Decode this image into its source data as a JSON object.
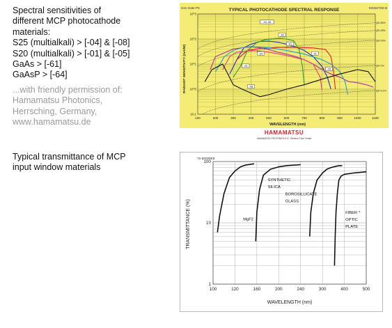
{
  "top_text": {
    "lines": [
      "Spectral sensitivities of",
      "different MCP photocathode",
      "materials:",
      "S25 (multialkali) > [-04] & [-08]",
      "S20 (multialkali) > [-01] & [-05]",
      "GaAs > [-61]",
      "GaAsP > [-64]"
    ],
    "credit": [
      "...with friendly permission of:",
      "Hamamatsu Photonics,",
      "Herrsching, Germany,",
      "www.hamamatsu.de"
    ]
  },
  "bottom_text": {
    "lines": [
      "Typical transmittance of MCP",
      "input window materials"
    ]
  },
  "logo": {
    "text": "HAMAMATSU",
    "sub": "HAMAMATSU PHOTONICS K.K., Electron Tube Center"
  },
  "colors": {
    "chart_bg": "#f4ec74",
    "grid": "#8a8f30",
    "logo_red": "#d81f26"
  },
  "chart_data": [
    {
      "type": "line",
      "title": "TYPICAL PHOTOCATHODE SPECTRAL RESPONSE",
      "corner_left": "Gen Gate PS",
      "corner_right": "E93327SE-B",
      "xlabel": "WAVELENGTH (nm)",
      "ylabel": "RADIANT SENSITIVITY (mA/W)",
      "xlim": [
        100,
        1100
      ],
      "ylim": [
        0.1,
        1000
      ],
      "y_scale": "log",
      "x_ticks": [
        100,
        200,
        300,
        400,
        500,
        600,
        700,
        800,
        900,
        1000,
        1100
      ],
      "y_ticks": [
        {
          "v": 0.1,
          "label": "10-1"
        },
        {
          "v": 1,
          "label": "10^0"
        },
        {
          "v": 10,
          "label": "10^1"
        },
        {
          "v": 100,
          "label": "10^2"
        },
        {
          "v": 1000,
          "label": "10^3"
        }
      ],
      "qe_lines": [
        {
          "label": "QE=50%",
          "q": 0.5
        },
        {
          "label": "QE=25%",
          "q": 0.25
        },
        {
          "label": "QE=10%",
          "q": 0.1
        },
        {
          "label": "QE=1%",
          "q": 0.01
        },
        {
          "label": "QE=0.1%",
          "q": 0.001
        }
      ],
      "series": [
        {
          "name": "-04 -08",
          "color": "#1a2fd6",
          "points": [
            [
              280,
              4
            ],
            [
              320,
              15
            ],
            [
              360,
              45
            ],
            [
              400,
              62
            ],
            [
              450,
              80
            ],
            [
              500,
              82
            ],
            [
              550,
              75
            ],
            [
              600,
              62
            ],
            [
              650,
              48
            ],
            [
              700,
              35
            ],
            [
              750,
              20
            ],
            [
              800,
              8
            ],
            [
              830,
              3
            ],
            [
              850,
              1
            ]
          ]
        },
        {
          "name": "-61",
          "color": "#e02020",
          "points": [
            [
              320,
              15
            ],
            [
              380,
              35
            ],
            [
              450,
              42
            ],
            [
              550,
              46
            ],
            [
              650,
              46
            ],
            [
              750,
              44
            ],
            [
              820,
              38
            ],
            [
              850,
              20
            ],
            [
              865,
              5
            ],
            [
              875,
              1
            ]
          ]
        },
        {
          "name": "-64",
          "color": "#2aa02a",
          "points": [
            [
              300,
              3
            ],
            [
              340,
              8
            ],
            [
              380,
              35
            ],
            [
              430,
              70
            ],
            [
              480,
              95
            ],
            [
              520,
              100
            ],
            [
              560,
              105
            ],
            [
              600,
              100
            ],
            [
              640,
              85
            ],
            [
              670,
              40
            ],
            [
              690,
              8
            ],
            [
              700,
              1.5
            ]
          ]
        },
        {
          "name": "-01",
          "color": "#b030a8",
          "points": [
            [
              170,
              6
            ],
            [
              200,
              20
            ],
            [
              250,
              28
            ],
            [
              300,
              40
            ],
            [
              350,
              45
            ],
            [
              400,
              48
            ],
            [
              450,
              45
            ],
            [
              500,
              38
            ],
            [
              550,
              30
            ],
            [
              600,
              25
            ],
            [
              650,
              20
            ],
            [
              700,
              15
            ],
            [
              750,
              10
            ],
            [
              800,
              6
            ],
            [
              850,
              4
            ],
            [
              900,
              3
            ],
            [
              950,
              2
            ],
            [
              1000,
              1.8
            ],
            [
              1050,
              1.5
            ],
            [
              1090,
              1.2
            ]
          ]
        },
        {
          "name": "-05",
          "color": "#20a0c8",
          "points": [
            [
              200,
              5
            ],
            [
              250,
              20
            ],
            [
              300,
              35
            ],
            [
              350,
              45
            ],
            [
              400,
              50
            ],
            [
              500,
              45
            ],
            [
              600,
              35
            ],
            [
              700,
              25
            ],
            [
              800,
              15
            ],
            [
              850,
              10
            ],
            [
              900,
              5
            ],
            [
              930,
              2
            ],
            [
              945,
              0.6
            ]
          ]
        },
        {
          "name": "-08",
          "color": "#e0407a",
          "points": [
            [
              240,
              6
            ],
            [
              280,
              20
            ],
            [
              320,
              30
            ],
            [
              400,
              35
            ],
            [
              500,
              30
            ],
            [
              600,
              22
            ],
            [
              700,
              15
            ],
            [
              750,
              10
            ],
            [
              790,
              3
            ],
            [
              800,
              0.9
            ]
          ]
        },
        {
          "name": "other",
          "color": "#111111",
          "points": [
            [
              140,
              2
            ],
            [
              180,
              6
            ],
            [
              240,
              10
            ],
            [
              270,
              4
            ],
            [
              300,
              1.5
            ],
            [
              350,
              1
            ],
            [
              400,
              0.7
            ],
            [
              450,
              0.5
            ],
            [
              500,
              0.6
            ],
            [
              600,
              1
            ],
            [
              700,
              1.5
            ],
            [
              800,
              2.5
            ],
            [
              900,
              4
            ],
            [
              1000,
              6
            ],
            [
              1060,
              5
            ],
            [
              1100,
              2
            ]
          ]
        }
      ],
      "labels": [
        {
          "text": "-04 -08",
          "x": 490,
          "y": 450
        },
        {
          "text": "-61",
          "x": 620,
          "y": 60
        },
        {
          "text": "-64",
          "x": 575,
          "y": 140
        },
        {
          "text": "-04",
          "x": 455,
          "y": 25
        },
        {
          "text": "-01",
          "x": 760,
          "y": 25
        },
        {
          "text": "-05",
          "x": 370,
          "y": 8
        },
        {
          "text": "-08",
          "x": 400,
          "y": 1.2
        },
        {
          "text": "-05",
          "x": 840,
          "y": 6
        }
      ]
    },
    {
      "type": "line",
      "corner": "TII B0009EB",
      "xlabel": "WAVELENGTH (nm)",
      "ylabel": "TRANSMITTANCE (%)",
      "y_scale": "log",
      "ylim": [
        1,
        100
      ],
      "x_ticks": [
        100,
        120,
        160,
        200,
        240,
        300,
        400,
        500
      ],
      "y_ticks": [
        1,
        10,
        100
      ],
      "series": [
        {
          "name": "MgF2",
          "points": [
            [
              104,
              7
            ],
            [
              106,
              13
            ],
            [
              110,
              30
            ],
            [
              115,
              55
            ],
            [
              120,
              70
            ],
            [
              130,
              82
            ],
            [
              140,
              88
            ],
            [
              155,
              92
            ]
          ]
        },
        {
          "name": "SYNTHETIC SILICA",
          "points": [
            [
              158,
              5
            ],
            [
              160,
              15
            ],
            [
              165,
              35
            ],
            [
              172,
              60
            ],
            [
              185,
              75
            ],
            [
              200,
              82
            ],
            [
              215,
              86
            ],
            [
              240,
              89
            ]
          ]
        },
        {
          "name": "BOROSILLICATE GLASS",
          "points": [
            [
              265,
              6
            ],
            [
              268,
              15
            ],
            [
              275,
              30
            ],
            [
              285,
              50
            ],
            [
              300,
              65
            ],
            [
              320,
              75
            ],
            [
              340,
              80
            ],
            [
              370,
              85
            ],
            [
              390,
              86
            ]
          ]
        },
        {
          "name": "FIBER OPTIC PLATE",
          "points": [
            [
              355,
              2
            ],
            [
              358,
              6
            ],
            [
              362,
              15
            ],
            [
              368,
              30
            ],
            [
              375,
              50
            ],
            [
              385,
              58
            ],
            [
              400,
              62
            ],
            [
              440,
              65
            ],
            [
              500,
              68
            ]
          ]
        }
      ],
      "labels": [
        {
          "text": "MgF2",
          "x": 135,
          "y": 11
        },
        {
          "text": "SYNTHETIC",
          "x": 180,
          "y": 48
        },
        {
          "text": "SILICA",
          "x": 180,
          "y": 37
        },
        {
          "text": "BOROSILLICATE",
          "x": 212,
          "y": 28
        },
        {
          "text": "GLASS",
          "x": 212,
          "y": 21.5
        },
        {
          "text": "FIBER *",
          "x": 405,
          "y": 14
        },
        {
          "text": "OPTIC",
          "x": 405,
          "y": 10.8
        },
        {
          "text": "PLATE",
          "x": 405,
          "y": 8.3
        }
      ]
    }
  ]
}
